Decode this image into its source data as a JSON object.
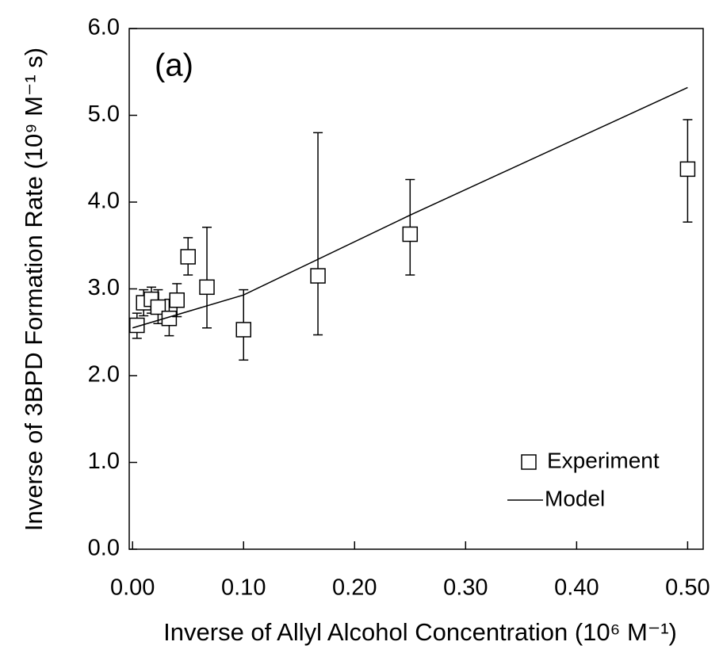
{
  "chart_data": {
    "type": "scatter",
    "annotation": "(a)",
    "x_label": "Inverse of Allyl Alcohol Concentration (10⁶ M⁻¹)",
    "y_label": "Inverse of 3BPD Formation Rate (10⁹ M⁻¹ s)",
    "xlim": [
      -0.003,
      0.514
    ],
    "ylim": [
      0,
      6
    ],
    "xticks": [
      {
        "value": 0,
        "label": "0.00"
      },
      {
        "value": 0.1,
        "label": "0.10"
      },
      {
        "value": 0.2,
        "label": "0.20"
      },
      {
        "value": 0.3,
        "label": "0.30"
      },
      {
        "value": 0.4,
        "label": "0.40"
      },
      {
        "value": 0.5,
        "label": "0.50"
      }
    ],
    "yticks": [
      {
        "value": 0,
        "label": "0.0"
      },
      {
        "value": 1,
        "label": "1.0"
      },
      {
        "value": 2,
        "label": "2.0"
      },
      {
        "value": 3,
        "label": "3.0"
      },
      {
        "value": 4,
        "label": "4.0"
      },
      {
        "value": 5,
        "label": "5.0"
      },
      {
        "value": 6,
        "label": "6.0"
      }
    ],
    "legend_position": "lower right",
    "series": [
      {
        "name": "Experiment",
        "kind": "marker",
        "color": "#000000",
        "x": [
          0.004,
          0.01,
          0.017,
          0.023,
          0.033,
          0.04,
          0.05,
          0.067,
          0.1,
          0.167,
          0.25,
          0.5
        ],
        "values": [
          2.58,
          2.84,
          2.88,
          2.79,
          2.66,
          2.87,
          3.37,
          3.02,
          2.53,
          3.15,
          3.63,
          4.38
        ],
        "y_low": [
          2.43,
          2.69,
          2.72,
          2.6,
          2.46,
          2.68,
          3.16,
          2.55,
          2.18,
          2.47,
          3.16,
          3.77
        ],
        "y_high": [
          2.72,
          2.99,
          3.02,
          2.99,
          2.88,
          3.06,
          3.59,
          3.71,
          2.99,
          4.8,
          4.26,
          4.95
        ]
      },
      {
        "name": "Model",
        "kind": "line",
        "color": "#000000",
        "x": [
          0.0,
          0.1,
          0.25,
          0.5
        ],
        "values": [
          2.55,
          2.93,
          3.85,
          5.32
        ]
      }
    ]
  }
}
